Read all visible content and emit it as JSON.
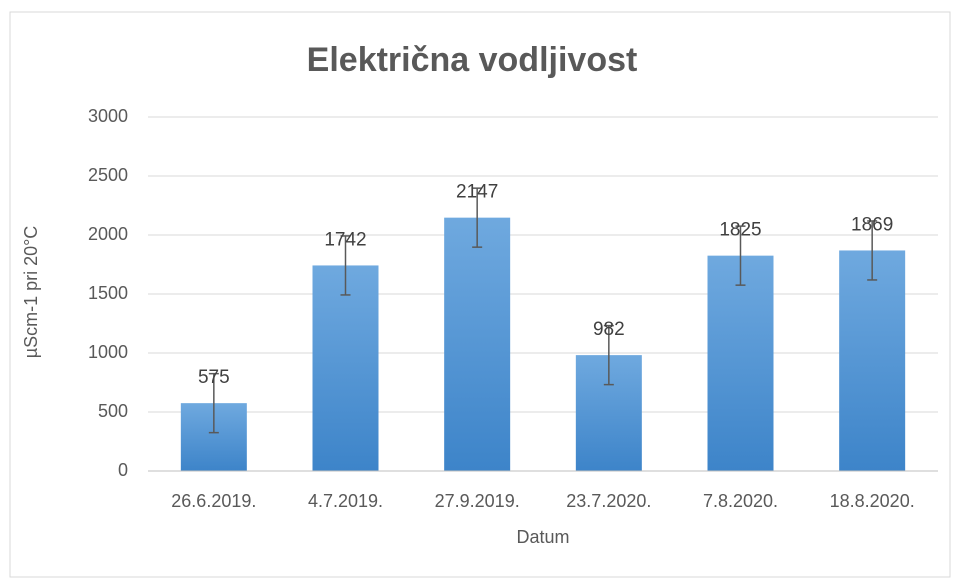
{
  "chart_data": {
    "type": "bar",
    "title": "Električna vodljivost",
    "xlabel": "Datum",
    "ylabel": "µScm-1  pri 20°C",
    "categories": [
      "26.6.2019.",
      "4.7.2019.",
      "27.9.2019.",
      "23.7.2020.",
      "7.8.2020.",
      "18.8.2020."
    ],
    "values": [
      575,
      1742,
      2147,
      982,
      1825,
      1869
    ],
    "errors": [
      250,
      250,
      250,
      250,
      250,
      250
    ],
    "color": "#5b9bd5",
    "ylim": [
      0,
      3000
    ],
    "yticks": [
      0,
      500,
      1000,
      1500,
      2000,
      2500,
      3000
    ],
    "grid": true
  }
}
